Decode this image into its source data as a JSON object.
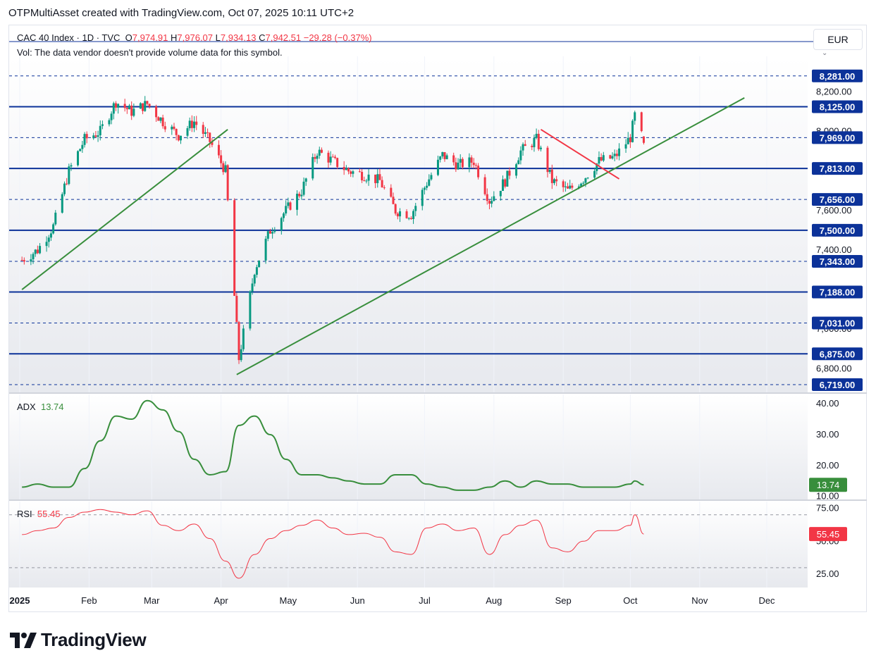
{
  "header": {
    "title": "OTPMultiAsset created with TradingView.com, Oct 07, 2025 10:11 UTC+2"
  },
  "legend": {
    "symbol": "CAC 40 Index · 1D · TVC",
    "o_label": "O",
    "o_value": "7,974.91",
    "h_label": "H",
    "h_value": "7,976.07",
    "l_label": "L",
    "l_value": "7,934.13",
    "c_label": "C",
    "c_value": "7,942.51",
    "change": "−29.28 (−0.37%)",
    "vol_note": "Vol: The data vendor doesn't provide volume data for this symbol."
  },
  "currency": "EUR",
  "adx": {
    "label": "ADX",
    "value": "13.74",
    "badge": "13.74"
  },
  "rsi": {
    "label": "RSI",
    "value": "55.45",
    "badge": "55.45"
  },
  "brand": {
    "name": "TradingView"
  },
  "colors": {
    "up": "#089981",
    "down": "#f23645",
    "level": "#0c3299",
    "trend": "#388e3c",
    "resistance": "#f23645",
    "adx": "#388e3c",
    "rsi": "#f23645",
    "badge_navy": "#0c3299"
  },
  "chart_data": [
    {
      "type": "candlestick",
      "title": "CAC 40 Index · 1D · TVC",
      "xlabel": "",
      "ylabel": "",
      "x_ticks": [
        "2025",
        "Feb",
        "Mar",
        "Apr",
        "May",
        "Jun",
        "Jul",
        "Aug",
        "Sep",
        "Oct",
        "Nov",
        "Dec"
      ],
      "y_ticks": [
        "8,200.00",
        "8,000.00",
        "7,800.00",
        "7,600.00",
        "7,400.00",
        "7,200.00",
        "7,000.00",
        "6,800.00"
      ],
      "ylim": [
        6680,
        8380
      ],
      "levels": [
        {
          "value": 8281,
          "label": "8,281.00",
          "style": "dashed"
        },
        {
          "value": 8125,
          "label": "8,125.00",
          "style": "solid"
        },
        {
          "value": 7969,
          "label": "7,969.00",
          "style": "dashed"
        },
        {
          "value": 7813,
          "label": "7,813.00",
          "style": "solid"
        },
        {
          "value": 7656,
          "label": "7,656.00",
          "style": "dashed"
        },
        {
          "value": 7500,
          "label": "7,500.00",
          "style": "solid"
        },
        {
          "value": 7343,
          "label": "7,343.00",
          "style": "dashed"
        },
        {
          "value": 7188,
          "label": "7,188.00",
          "style": "solid"
        },
        {
          "value": 7031,
          "label": "7,031.00",
          "style": "dashed"
        },
        {
          "value": 6875,
          "label": "6,875.00",
          "style": "solid"
        },
        {
          "value": 6719,
          "label": "6,719.00",
          "style": "dashed"
        }
      ],
      "trendlines": [
        {
          "name": "support-1",
          "from": [
            "2025-01-02",
            7200
          ],
          "to": [
            "2025-04-04",
            8010
          ],
          "color": "green"
        },
        {
          "name": "support-2",
          "from": [
            "2025-04-08",
            6770
          ],
          "to": [
            "2025-11-21",
            8170
          ],
          "color": "green"
        },
        {
          "name": "resistance",
          "from": [
            "2025-08-22",
            8010
          ],
          "to": [
            "2025-09-26",
            7760
          ],
          "color": "red"
        }
      ],
      "series": [
        {
          "name": "CAC 40 daily closes (approx.)",
          "points": [
            [
              "Jan 02",
              7350
            ],
            [
              "Jan 09",
              7400
            ],
            [
              "Jan 16",
              7520
            ],
            [
              "Jan 23",
              7800
            ],
            [
              "Jan 30",
              7960
            ],
            [
              "Feb 06",
              8000
            ],
            [
              "Feb 13",
              8150
            ],
            [
              "Feb 20",
              8100
            ],
            [
              "Feb 27",
              8140
            ],
            [
              "Mar 06",
              8050
            ],
            [
              "Mar 13",
              7980
            ],
            [
              "Mar 20",
              8050
            ],
            [
              "Mar 27",
              7950
            ],
            [
              "Apr 03",
              7800
            ],
            [
              "Apr 09",
              6850
            ],
            [
              "Apr 16",
              7300
            ],
            [
              "Apr 23",
              7500
            ],
            [
              "Apr 30",
              7600
            ],
            [
              "May 07",
              7700
            ],
            [
              "May 14",
              7900
            ],
            [
              "May 21",
              7850
            ],
            [
              "May 28",
              7800
            ],
            [
              "Jun 04",
              7780
            ],
            [
              "Jun 11",
              7750
            ],
            [
              "Jun 18",
              7600
            ],
            [
              "Jun 25",
              7580
            ],
            [
              "Jul 02",
              7740
            ],
            [
              "Jul 09",
              7880
            ],
            [
              "Jul 16",
              7830
            ],
            [
              "Jul 23",
              7850
            ],
            [
              "Jul 30",
              7650
            ],
            [
              "Aug 06",
              7750
            ],
            [
              "Aug 13",
              7900
            ],
            [
              "Aug 20",
              7960
            ],
            [
              "Aug 27",
              7750
            ],
            [
              "Sep 03",
              7700
            ],
            [
              "Sep 10",
              7760
            ],
            [
              "Sep 17",
              7850
            ],
            [
              "Sep 24",
              7870
            ],
            [
              "Oct 01",
              7970
            ],
            [
              "Oct 03",
              8080
            ],
            [
              "Oct 07",
              7942.51
            ]
          ]
        }
      ]
    },
    {
      "type": "line",
      "title": "ADX",
      "y_ticks": [
        "40.00",
        "30.00",
        "20.00",
        "10.00"
      ],
      "ylim": [
        9,
        43
      ],
      "series": [
        {
          "name": "ADX",
          "points": [
            [
              "Jan 02",
              13
            ],
            [
              "Jan 09",
              14
            ],
            [
              "Jan 16",
              13
            ],
            [
              "Jan 23",
              13
            ],
            [
              "Jan 30",
              19
            ],
            [
              "Feb 06",
              28
            ],
            [
              "Feb 13",
              36
            ],
            [
              "Feb 20",
              35
            ],
            [
              "Feb 27",
              41
            ],
            [
              "Mar 06",
              38
            ],
            [
              "Mar 13",
              31
            ],
            [
              "Mar 20",
              22
            ],
            [
              "Mar 27",
              17
            ],
            [
              "Apr 03",
              18
            ],
            [
              "Apr 09",
              33
            ],
            [
              "Apr 16",
              36
            ],
            [
              "Apr 23",
              30
            ],
            [
              "Apr 30",
              22
            ],
            [
              "May 07",
              17
            ],
            [
              "May 14",
              17
            ],
            [
              "May 21",
              16
            ],
            [
              "May 28",
              15
            ],
            [
              "Jun 04",
              14
            ],
            [
              "Jun 11",
              14
            ],
            [
              "Jun 18",
              17
            ],
            [
              "Jun 25",
              17
            ],
            [
              "Jul 02",
              14
            ],
            [
              "Jul 09",
              13
            ],
            [
              "Jul 16",
              12
            ],
            [
              "Jul 23",
              12
            ],
            [
              "Jul 30",
              13
            ],
            [
              "Aug 06",
              15
            ],
            [
              "Aug 13",
              13
            ],
            [
              "Aug 20",
              15
            ],
            [
              "Aug 27",
              14
            ],
            [
              "Sep 03",
              14
            ],
            [
              "Sep 10",
              13
            ],
            [
              "Sep 17",
              13
            ],
            [
              "Sep 24",
              13
            ],
            [
              "Oct 01",
              14
            ],
            [
              "Oct 03",
              15
            ],
            [
              "Oct 07",
              13.74
            ]
          ]
        }
      ]
    },
    {
      "type": "line",
      "title": "RSI",
      "y_ticks": [
        "75.00",
        "50.00",
        "25.00"
      ],
      "ylim": [
        15,
        80
      ],
      "bands": [
        70,
        30
      ],
      "series": [
        {
          "name": "RSI",
          "points": [
            [
              "Jan 02",
              55
            ],
            [
              "Jan 09",
              58
            ],
            [
              "Jan 16",
              60
            ],
            [
              "Jan 23",
              68
            ],
            [
              "Jan 30",
              72
            ],
            [
              "Feb 06",
              74
            ],
            [
              "Feb 13",
              72
            ],
            [
              "Feb 20",
              70
            ],
            [
              "Feb 27",
              73
            ],
            [
              "Mar 06",
              62
            ],
            [
              "Mar 13",
              58
            ],
            [
              "Mar 20",
              63
            ],
            [
              "Mar 27",
              52
            ],
            [
              "Apr 03",
              35
            ],
            [
              "Apr 09",
              22
            ],
            [
              "Apr 16",
              40
            ],
            [
              "Apr 23",
              52
            ],
            [
              "Apr 30",
              58
            ],
            [
              "May 07",
              62
            ],
            [
              "May 14",
              66
            ],
            [
              "May 21",
              60
            ],
            [
              "May 28",
              55
            ],
            [
              "Jun 04",
              56
            ],
            [
              "Jun 11",
              53
            ],
            [
              "Jun 18",
              42
            ],
            [
              "Jun 25",
              40
            ],
            [
              "Jul 02",
              60
            ],
            [
              "Jul 09",
              63
            ],
            [
              "Jul 16",
              58
            ],
            [
              "Jul 23",
              60
            ],
            [
              "Jul 30",
              40
            ],
            [
              "Aug 06",
              55
            ],
            [
              "Aug 13",
              62
            ],
            [
              "Aug 20",
              66
            ],
            [
              "Aug 27",
              45
            ],
            [
              "Sep 03",
              42
            ],
            [
              "Sep 10",
              50
            ],
            [
              "Sep 17",
              58
            ],
            [
              "Sep 24",
              58
            ],
            [
              "Oct 01",
              62
            ],
            [
              "Oct 03",
              70
            ],
            [
              "Oct 07",
              55.45
            ]
          ]
        }
      ]
    }
  ]
}
